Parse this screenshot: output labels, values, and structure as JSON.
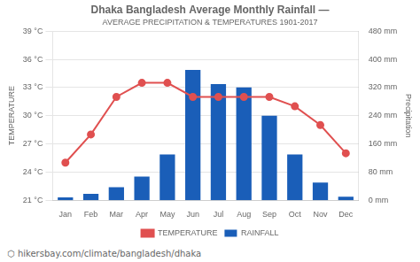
{
  "chart_data": {
    "type": "bar",
    "title": "Dhaka Bangladesh Average Monthly Rainfall —",
    "subtitle": "AVERAGE PRECIPITATION & TEMPERATURES 1901-2017",
    "annotations": [
      "⬡ hikersbay.com/climate/bangladesh/dhaka"
    ],
    "categories": [
      "Jan",
      "Feb",
      "Mar",
      "Apr",
      "May",
      "Jun",
      "Jul",
      "Aug",
      "Sep",
      "Oct",
      "Nov",
      "Dec"
    ],
    "series": [
      {
        "name": "TEMPERATURE",
        "type": "line",
        "color": "#e05050",
        "marker": "circle",
        "values": [
          25.0,
          28.0,
          32.0,
          33.5,
          33.5,
          32.0,
          32.0,
          32.0,
          32.0,
          31.0,
          29.0,
          26.0
        ]
      },
      {
        "name": "RAINFALL",
        "type": "bar",
        "color": "#1a5eb8",
        "axis": "y2",
        "values": [
          8,
          18,
          37,
          67,
          130,
          370,
          330,
          320,
          240,
          130,
          50,
          10
        ]
      }
    ],
    "ylabel": "TEMPERATURE",
    "y2label": "Precipitation",
    "ylim": [
      21,
      39
    ],
    "yticks": [
      {
        "value": 21,
        "label": "21 °C"
      },
      {
        "value": 24,
        "label": "24 °C"
      },
      {
        "value": 27,
        "label": "27 °C"
      },
      {
        "value": 30,
        "label": "30 °C"
      },
      {
        "value": 33,
        "label": "33 °C"
      },
      {
        "value": 36,
        "label": "36 °C"
      },
      {
        "value": 39,
        "label": "39 °C"
      }
    ],
    "y2lim": [
      0,
      480
    ],
    "y2ticks": [
      {
        "value": 0,
        "label": "0 mm"
      },
      {
        "value": 80,
        "label": "80 mm"
      },
      {
        "value": 160,
        "label": "160 mm"
      },
      {
        "value": 240,
        "label": "240 mm"
      },
      {
        "value": 320,
        "label": "320 mm"
      },
      {
        "value": 400,
        "label": "400 mm"
      },
      {
        "value": 480,
        "label": "480 mm"
      }
    ],
    "grid": true,
    "legend": "bottom"
  }
}
